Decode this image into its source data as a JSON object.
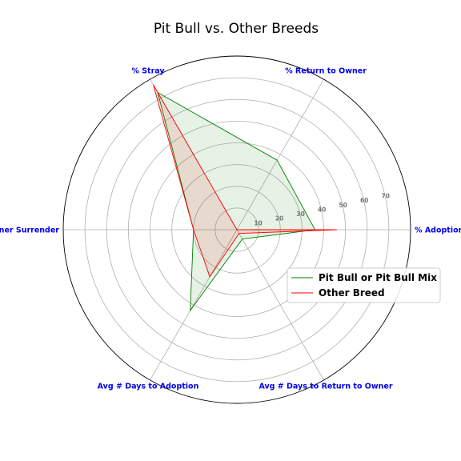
{
  "chart_data": {
    "type": "radar",
    "title": "Pit Bull vs. Other Breeds",
    "axes": [
      "% Adoption",
      "% Return to Owner",
      "% Stray",
      "% Owner Surrender",
      "Avg # Days to Adoption",
      "Avg # Days to Return to Owner"
    ],
    "ticks": [
      10,
      20,
      30,
      40,
      50,
      60,
      70
    ],
    "rmax": 80,
    "grid": true,
    "legend_position": "center-right",
    "series": [
      {
        "name": "Pit Bull or Pit Bull Mix",
        "values": [
          36,
          37,
          73,
          20,
          43,
          5
        ],
        "color": "#008000",
        "fill": "#008000"
      },
      {
        "name": "Other Breed",
        "values": [
          46,
          0,
          77,
          20,
          25,
          2
        ],
        "color": "#ff0000",
        "fill": "#ff0000"
      }
    ]
  }
}
